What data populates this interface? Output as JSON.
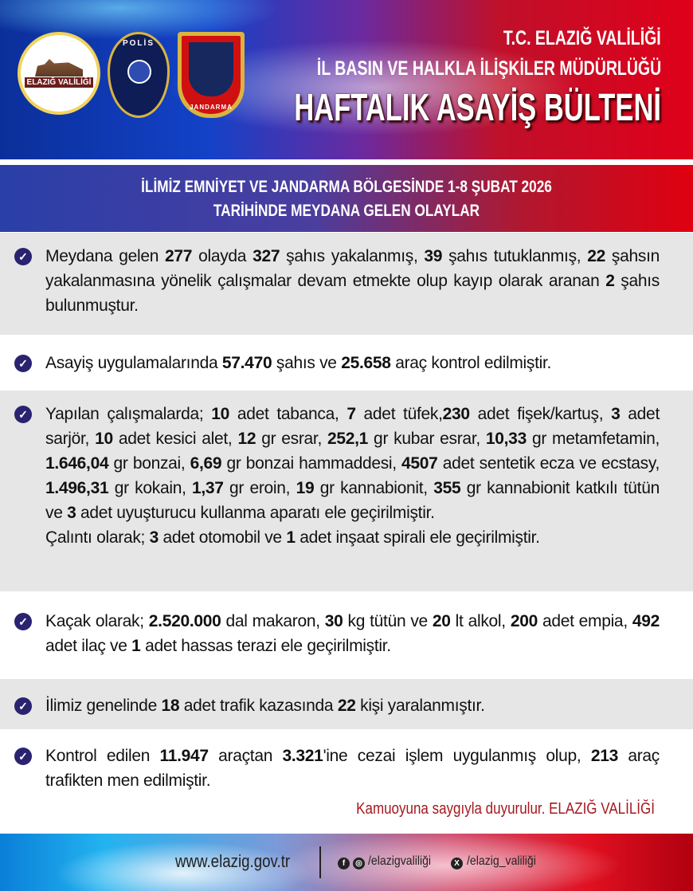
{
  "header": {
    "line1": "T.C. ELAZIĞ VALİLİĞİ",
    "line2": "İL BASIN VE HALKLA İLİŞKİLER MÜDÜRLÜĞÜ",
    "title": "HAFTALIK ASAYİŞ BÜLTENİ",
    "logos": {
      "valilik": "ELAZIĞ VALİLİĞİ",
      "polis": "POLİS",
      "jandarma": "JANDARMA"
    }
  },
  "banner": {
    "line1": "İLİMİZ EMNİYET VE JANDARMA BÖLGESİNDE 1-8 ŞUBAT 2026",
    "line2": "TARİHİNDE MEYDANA GELEN OLAYLAR"
  },
  "items": [
    {
      "segments": [
        [
          "Meydana gelen ",
          0
        ],
        [
          "277",
          1
        ],
        [
          " olayda ",
          0
        ],
        [
          "327",
          1
        ],
        [
          " şahıs yakalanmış, ",
          0
        ],
        [
          "39",
          1
        ],
        [
          " şahıs tutuklanmış, ",
          0
        ],
        [
          "22",
          1
        ],
        [
          " şahsın yakalanmasına yönelik çalışmalar devam etmekte olup kayıp olarak aranan ",
          0
        ],
        [
          "2",
          1
        ],
        [
          " şahıs bulunmuştur.",
          0
        ]
      ]
    },
    {
      "segments": [
        [
          "Asayiş uygulamalarında ",
          0
        ],
        [
          "57.470",
          1
        ],
        [
          " şahıs ve ",
          0
        ],
        [
          "25.658",
          1
        ],
        [
          " araç kontrol edilmiştir.",
          0
        ]
      ]
    },
    {
      "segments": [
        [
          "Yapılan çalışmalarda; ",
          0
        ],
        [
          "10",
          1
        ],
        [
          " adet tabanca, ",
          0
        ],
        [
          "7",
          1
        ],
        [
          " adet tüfek,",
          0
        ],
        [
          "230",
          1
        ],
        [
          " adet fişek/kartuş, ",
          0
        ],
        [
          "3",
          1
        ],
        [
          " adet sarjör, ",
          0
        ],
        [
          "10",
          1
        ],
        [
          " adet kesici alet, ",
          0
        ],
        [
          "12",
          1
        ],
        [
          " gr esrar, ",
          0
        ],
        [
          "252,1",
          1
        ],
        [
          " gr kubar esrar, ",
          0
        ],
        [
          "10,33",
          1
        ],
        [
          " gr metamfetamin, ",
          0
        ],
        [
          "1.646,04",
          1
        ],
        [
          " gr bonzai, ",
          0
        ],
        [
          "6,69",
          1
        ],
        [
          " gr bonzai hammaddesi, ",
          0
        ],
        [
          "4507",
          1
        ],
        [
          " adet sentetik ecza ve ecstasy, ",
          0
        ],
        [
          "1.496,31",
          1
        ],
        [
          " gr kokain, ",
          0
        ],
        [
          "1,37",
          1
        ],
        [
          " gr eroin, ",
          0
        ],
        [
          "19",
          1
        ],
        [
          " gr kannabionit, ",
          0
        ],
        [
          "355",
          1
        ],
        [
          " gr kannabionit katkılı tütün ve ",
          0
        ],
        [
          "3",
          1
        ],
        [
          " adet uyuşturucu kullanma aparatı ele geçirilmiştir.",
          0
        ]
      ],
      "extra": [
        [
          "Çalıntı olarak;  ",
          0
        ],
        [
          "3",
          1
        ],
        [
          " adet otomobil ve ",
          0
        ],
        [
          "1",
          1
        ],
        [
          " adet inşaat spirali ele geçirilmiştir.",
          0
        ]
      ]
    },
    {
      "segments": [
        [
          "Kaçak olarak; ",
          0
        ],
        [
          "2.520.000",
          1
        ],
        [
          " dal makaron, ",
          0
        ],
        [
          "30",
          1
        ],
        [
          " kg tütün ve ",
          0
        ],
        [
          "20",
          1
        ],
        [
          " lt alkol, ",
          0
        ],
        [
          "200",
          1
        ],
        [
          " adet empia, ",
          0
        ],
        [
          "492",
          1
        ],
        [
          " adet ilaç  ve ",
          0
        ],
        [
          "1",
          1
        ],
        [
          " adet hassas terazi ele geçirilmiştir.",
          0
        ]
      ]
    },
    {
      "segments": [
        [
          "İlimiz genelinde ",
          0
        ],
        [
          "18",
          1
        ],
        [
          " adet trafik kazasında ",
          0
        ],
        [
          "22",
          1
        ],
        [
          " kişi yaralanmıştır.",
          0
        ]
      ]
    },
    {
      "segments": [
        [
          "Kontrol edilen ",
          0
        ],
        [
          "11.947",
          1
        ],
        [
          " araçtan ",
          0
        ],
        [
          "3.321",
          1
        ],
        [
          "'ine cezai işlem uygulanmış olup, ",
          0
        ],
        [
          "213",
          1
        ],
        [
          " araç trafikten men edilmiştir.",
          0
        ]
      ]
    }
  ],
  "credit": "Kamuoyuna saygıyla duyurulur. ELAZIĞ VALİLİĞİ",
  "footer": {
    "website": "www.elazig.gov.tr",
    "fb_ig_handle": "/elazigvaliliği",
    "x_handle": "/elazig_valiliği",
    "icons": [
      "facebook-icon",
      "instagram-icon",
      "x-icon"
    ]
  },
  "colors": {
    "check": "#2a2370",
    "credit": "#a5181e",
    "row_gray": "#e6e6e6"
  }
}
